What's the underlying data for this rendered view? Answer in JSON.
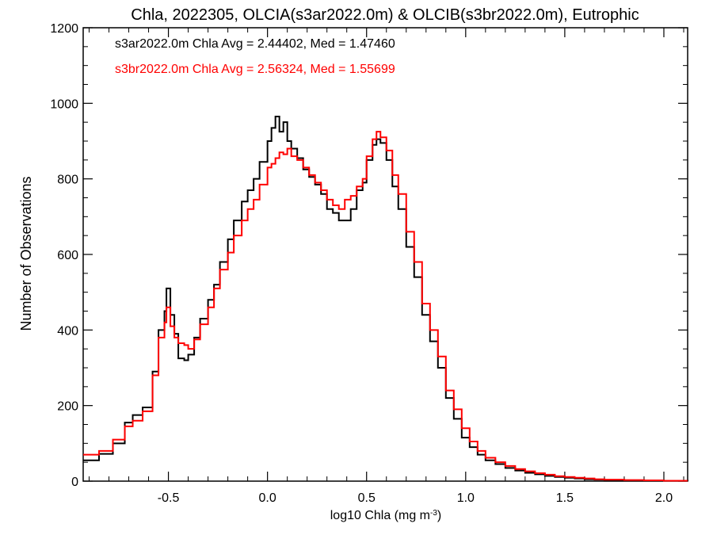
{
  "chart_data": {
    "type": "line",
    "title": "Chla, 2022305, OLCIA(s3ar2022.0m) & OLCIB(s3br2022.0m), Eutrophic",
    "xlabel": "log10 Chla (mg m",
    "xlabel_sup": "-3",
    "xlabel_end": ")",
    "ylabel": "Number of Observations",
    "xlim": [
      -0.93,
      2.12
    ],
    "ylim": [
      0,
      1200
    ],
    "xticks": [
      -0.5,
      0.0,
      0.5,
      1.0,
      1.5,
      2.0
    ],
    "xtick_labels": [
      "-0.5",
      "0.0",
      "0.5",
      "1.0",
      "1.5",
      "2.0"
    ],
    "yticks": [
      0,
      200,
      400,
      600,
      800,
      1000,
      1200
    ],
    "ytick_labels": [
      "0",
      "200",
      "400",
      "600",
      "800",
      "1000",
      "1200"
    ],
    "grid": false,
    "step": true,
    "series": [
      {
        "name": "s3ar2022.0m Chla Avg = 2.44402, Med = 1.47460",
        "color": "#000000",
        "points": [
          [
            -0.93,
            55
          ],
          [
            -0.85,
            72
          ],
          [
            -0.78,
            100
          ],
          [
            -0.72,
            155
          ],
          [
            -0.68,
            175
          ],
          [
            -0.63,
            195
          ],
          [
            -0.58,
            290
          ],
          [
            -0.55,
            400
          ],
          [
            -0.52,
            450
          ],
          [
            -0.51,
            510
          ],
          [
            -0.49,
            440
          ],
          [
            -0.47,
            390
          ],
          [
            -0.45,
            325
          ],
          [
            -0.42,
            320
          ],
          [
            -0.4,
            335
          ],
          [
            -0.37,
            380
          ],
          [
            -0.34,
            430
          ],
          [
            -0.3,
            480
          ],
          [
            -0.27,
            520
          ],
          [
            -0.24,
            580
          ],
          [
            -0.2,
            640
          ],
          [
            -0.17,
            690
          ],
          [
            -0.13,
            740
          ],
          [
            -0.1,
            770
          ],
          [
            -0.07,
            800
          ],
          [
            -0.04,
            845
          ],
          [
            0.0,
            900
          ],
          [
            0.02,
            935
          ],
          [
            0.04,
            965
          ],
          [
            0.06,
            925
          ],
          [
            0.08,
            950
          ],
          [
            0.1,
            900
          ],
          [
            0.12,
            880
          ],
          [
            0.15,
            855
          ],
          [
            0.18,
            825
          ],
          [
            0.21,
            805
          ],
          [
            0.24,
            785
          ],
          [
            0.27,
            760
          ],
          [
            0.3,
            720
          ],
          [
            0.33,
            710
          ],
          [
            0.36,
            690
          ],
          [
            0.39,
            690
          ],
          [
            0.42,
            720
          ],
          [
            0.45,
            770
          ],
          [
            0.48,
            790
          ],
          [
            0.5,
            850
          ],
          [
            0.53,
            890
          ],
          [
            0.55,
            905
          ],
          [
            0.57,
            895
          ],
          [
            0.6,
            850
          ],
          [
            0.63,
            780
          ],
          [
            0.66,
            720
          ],
          [
            0.7,
            620
          ],
          [
            0.74,
            540
          ],
          [
            0.78,
            440
          ],
          [
            0.82,
            370
          ],
          [
            0.86,
            300
          ],
          [
            0.9,
            220
          ],
          [
            0.94,
            165
          ],
          [
            0.98,
            115
          ],
          [
            1.02,
            90
          ],
          [
            1.06,
            70
          ],
          [
            1.1,
            55
          ],
          [
            1.15,
            45
          ],
          [
            1.2,
            35
          ],
          [
            1.25,
            28
          ],
          [
            1.3,
            22
          ],
          [
            1.35,
            18
          ],
          [
            1.4,
            14
          ],
          [
            1.45,
            11
          ],
          [
            1.5,
            9
          ],
          [
            1.55,
            7
          ],
          [
            1.6,
            5
          ],
          [
            1.65,
            4
          ],
          [
            1.7,
            3
          ],
          [
            1.8,
            2
          ],
          [
            1.9,
            1
          ],
          [
            2.0,
            1
          ],
          [
            2.12,
            0
          ]
        ]
      },
      {
        "name": "s3br2022.0m Chla Avg = 2.56324, Med = 1.55699",
        "color": "#ff0000",
        "points": [
          [
            -0.93,
            70
          ],
          [
            -0.85,
            80
          ],
          [
            -0.78,
            110
          ],
          [
            -0.72,
            145
          ],
          [
            -0.68,
            160
          ],
          [
            -0.63,
            185
          ],
          [
            -0.58,
            280
          ],
          [
            -0.55,
            380
          ],
          [
            -0.52,
            420
          ],
          [
            -0.51,
            460
          ],
          [
            -0.49,
            410
          ],
          [
            -0.47,
            380
          ],
          [
            -0.45,
            365
          ],
          [
            -0.42,
            360
          ],
          [
            -0.4,
            350
          ],
          [
            -0.37,
            375
          ],
          [
            -0.34,
            415
          ],
          [
            -0.3,
            460
          ],
          [
            -0.27,
            510
          ],
          [
            -0.24,
            560
          ],
          [
            -0.2,
            605
          ],
          [
            -0.17,
            650
          ],
          [
            -0.13,
            690
          ],
          [
            -0.1,
            720
          ],
          [
            -0.07,
            745
          ],
          [
            -0.04,
            785
          ],
          [
            0.0,
            830
          ],
          [
            0.02,
            840
          ],
          [
            0.04,
            855
          ],
          [
            0.06,
            870
          ],
          [
            0.08,
            865
          ],
          [
            0.1,
            880
          ],
          [
            0.12,
            860
          ],
          [
            0.15,
            850
          ],
          [
            0.18,
            830
          ],
          [
            0.21,
            810
          ],
          [
            0.24,
            790
          ],
          [
            0.27,
            770
          ],
          [
            0.3,
            745
          ],
          [
            0.33,
            730
          ],
          [
            0.36,
            720
          ],
          [
            0.39,
            745
          ],
          [
            0.42,
            755
          ],
          [
            0.45,
            780
          ],
          [
            0.48,
            800
          ],
          [
            0.5,
            860
          ],
          [
            0.53,
            905
          ],
          [
            0.55,
            925
          ],
          [
            0.57,
            910
          ],
          [
            0.6,
            875
          ],
          [
            0.63,
            810
          ],
          [
            0.66,
            760
          ],
          [
            0.7,
            660
          ],
          [
            0.74,
            580
          ],
          [
            0.78,
            470
          ],
          [
            0.82,
            400
          ],
          [
            0.86,
            330
          ],
          [
            0.9,
            240
          ],
          [
            0.94,
            190
          ],
          [
            0.98,
            140
          ],
          [
            1.02,
            105
          ],
          [
            1.06,
            80
          ],
          [
            1.1,
            62
          ],
          [
            1.15,
            50
          ],
          [
            1.2,
            40
          ],
          [
            1.25,
            32
          ],
          [
            1.3,
            26
          ],
          [
            1.35,
            21
          ],
          [
            1.4,
            17
          ],
          [
            1.45,
            13
          ],
          [
            1.5,
            11
          ],
          [
            1.55,
            9
          ],
          [
            1.6,
            7
          ],
          [
            1.65,
            5
          ],
          [
            1.7,
            4
          ],
          [
            1.8,
            3
          ],
          [
            1.9,
            2
          ],
          [
            2.0,
            1
          ],
          [
            2.12,
            1
          ]
        ]
      }
    ]
  }
}
